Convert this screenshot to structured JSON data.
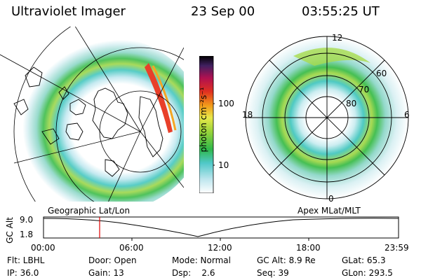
{
  "header": {
    "instrument": "Ultraviolet Imager",
    "date": "23 Sep 00",
    "time": "03:55:25 UT"
  },
  "colorbar": {
    "unit_label": "photon cm⁻²s⁻¹",
    "ticks": [
      "100",
      "10"
    ]
  },
  "polar_plot": {
    "mlt_labels": [
      "12",
      "18",
      "6",
      "0"
    ],
    "lat_labels": [
      "60",
      "70",
      "80"
    ]
  },
  "timeline": {
    "left_title": "Geographic Lat/Lon",
    "right_title": "Apex MLat/MLT",
    "y_axis_label": "GC Alt",
    "y_ticks": [
      "9.0",
      "1.8"
    ],
    "x_ticks": [
      "00:00",
      "06:00",
      "12:00",
      "18:00",
      "23:59"
    ],
    "colors": {
      "marker": "#e00000",
      "curve": "#000000"
    }
  },
  "footer": {
    "row1": {
      "filter": "Flt: LBHL",
      "door": "Door: Open",
      "mode": "Mode: Normal",
      "gc_alt": "GC Alt: 8.9 Re",
      "glat": "GLat:  65.3"
    },
    "row2": {
      "ip": "IP: 36.0",
      "gain": "Gain: 13",
      "dsp": "Dsp:    2.6",
      "seq": "Seq: 39",
      "glon": "GLon: 293.5"
    }
  }
}
